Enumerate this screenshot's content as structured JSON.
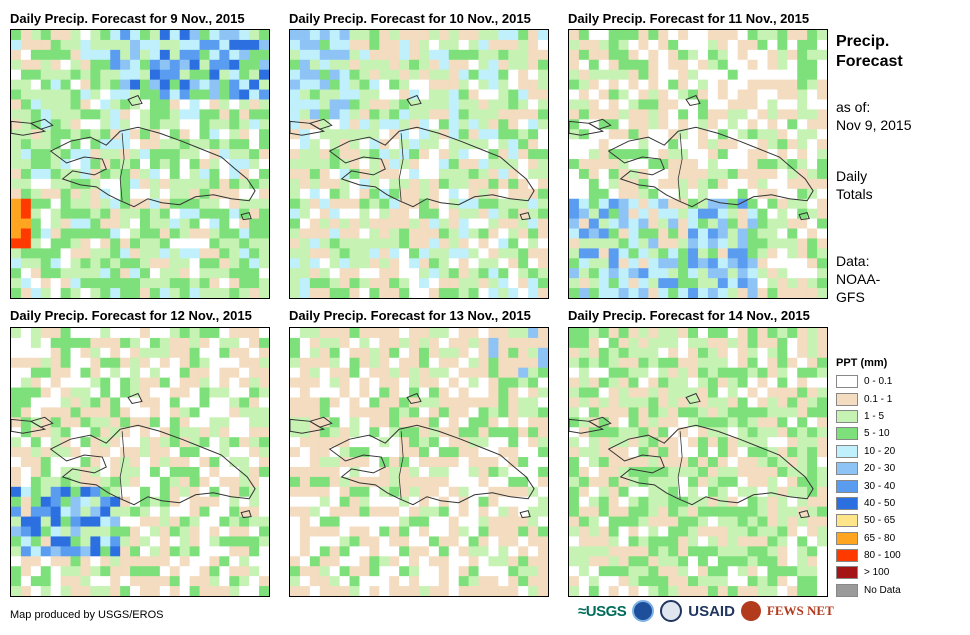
{
  "panels": [
    {
      "title": "Daily Precip. Forecast for 9 Nov., 2015",
      "seed": 11,
      "regime": "wet-north"
    },
    {
      "title": "Daily Precip. Forecast for 10 Nov., 2015",
      "seed": 23,
      "regime": "moderate"
    },
    {
      "title": "Daily Precip. Forecast for 11 Nov., 2015",
      "seed": 37,
      "regime": "wet-south"
    },
    {
      "title": "Daily Precip. Forecast for 12 Nov., 2015",
      "seed": 41,
      "regime": "wet-southwest"
    },
    {
      "title": "Daily Precip. Forecast for 13 Nov., 2015",
      "seed": 53,
      "regime": "dry"
    },
    {
      "title": "Daily Precip. Forecast for 14 Nov., 2015",
      "seed": 67,
      "regime": "dry-green"
    }
  ],
  "sidebar": {
    "title_line1": "Precip.",
    "title_line2": "Forecast",
    "asof_label": "as of:",
    "asof_date": "Nov 9, 2015",
    "totals_line1": "Daily",
    "totals_line2": "Totals",
    "data_label": "Data:",
    "data_line1": "NOAA-",
    "data_line2": "GFS"
  },
  "legend": {
    "title": "PPT (mm)",
    "items": [
      {
        "label": "0 - 0.1",
        "color": "#ffffff"
      },
      {
        "label": "0.1 - 1",
        "color": "#f3dcbf"
      },
      {
        "label": "1 - 5",
        "color": "#c6f2b4"
      },
      {
        "label": "5 - 10",
        "color": "#7ee07a"
      },
      {
        "label": "10 - 20",
        "color": "#bff0fb"
      },
      {
        "label": "20 - 30",
        "color": "#8ec3f5"
      },
      {
        "label": "30 - 40",
        "color": "#5a9df0"
      },
      {
        "label": "40 - 50",
        "color": "#2c6fe0"
      },
      {
        "label": "50 - 65",
        "color": "#ffe58a"
      },
      {
        "label": "65 - 80",
        "color": "#ffa51f"
      },
      {
        "label": "80 - 100",
        "color": "#ff3a00"
      },
      {
        "label": "> 100",
        "color": "#a51515"
      },
      {
        "label": "No Data",
        "color": "#9a9a9a"
      }
    ]
  },
  "footer": {
    "credit": "Map produced by USGS/EROS",
    "logo_usgs": "≈USGS",
    "logo_usaid": "USAID",
    "logo_fews": "FEWS NET"
  }
}
